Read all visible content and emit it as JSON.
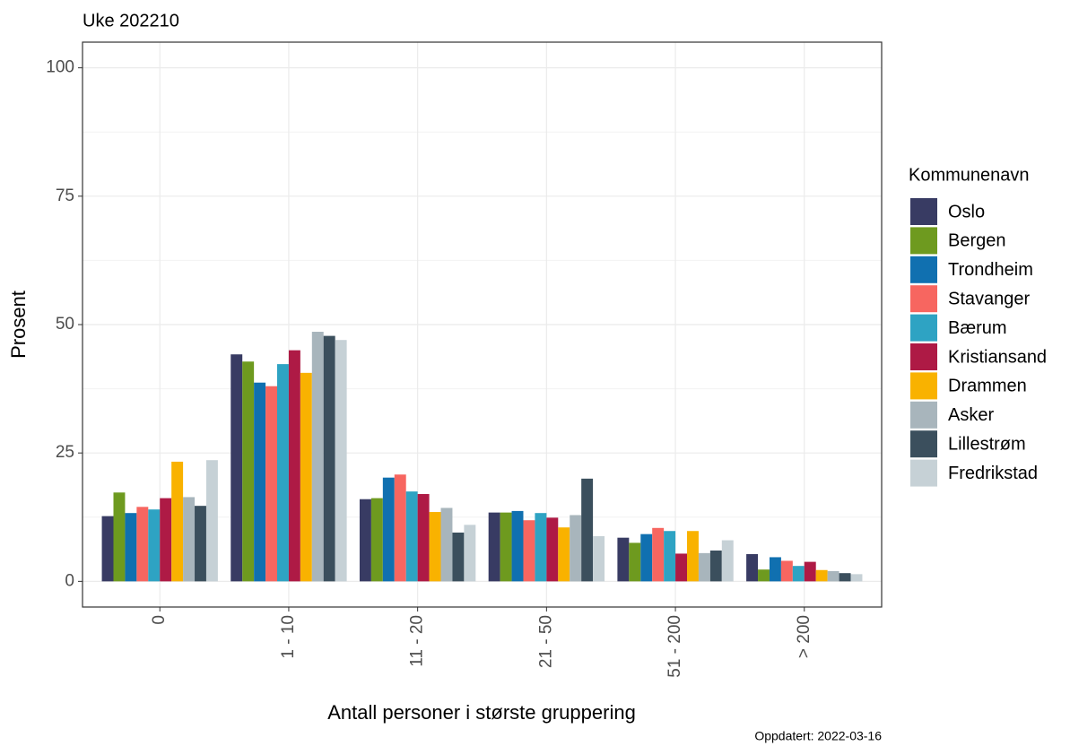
{
  "chart_data": {
    "type": "bar",
    "title": "Uke 202210",
    "y_label": "Prosent",
    "x_label": "Antall personer i største gruppering",
    "caption": "Oppdatert: 2022-03-16",
    "legend_title": "Kommunenavn",
    "categories": [
      "0",
      "1 - 10",
      "11 - 20",
      "21 - 50",
      "51 - 200",
      "> 200"
    ],
    "series": [
      {
        "name": "Oslo",
        "color": "#383b63",
        "values": [
          12.7,
          44.2,
          16,
          13.4,
          8.5,
          5.3
        ]
      },
      {
        "name": "Bergen",
        "color": "#6e9a1f",
        "values": [
          17.3,
          42.8,
          16.2,
          13.4,
          7.5,
          2.3
        ]
      },
      {
        "name": "Trondheim",
        "color": "#1070b0",
        "values": [
          13.3,
          38.7,
          20.2,
          13.7,
          9.2,
          4.7
        ]
      },
      {
        "name": "Stavanger",
        "color": "#f76660",
        "values": [
          14.5,
          38,
          20.8,
          11.9,
          10.4,
          4
        ]
      },
      {
        "name": "Bærum",
        "color": "#2ea3c3",
        "values": [
          14,
          42.3,
          17.5,
          13.3,
          9.8,
          3
        ]
      },
      {
        "name": "Kristiansand",
        "color": "#ae1a45",
        "values": [
          16.2,
          45,
          17,
          12.4,
          5.4,
          3.8
        ]
      },
      {
        "name": "Drammen",
        "color": "#f9b200",
        "values": [
          23.3,
          40.6,
          13.5,
          10.5,
          9.8,
          2.2
        ]
      },
      {
        "name": "Asker",
        "color": "#a8b5bc",
        "values": [
          16.4,
          48.6,
          14.3,
          12.9,
          5.5,
          2
        ]
      },
      {
        "name": "Lillestrøm",
        "color": "#3b4f5d",
        "values": [
          14.7,
          47.8,
          9.5,
          20,
          6,
          1.6
        ]
      },
      {
        "name": "Fredrikstad",
        "color": "#c6d1d6",
        "values": [
          23.6,
          47,
          11,
          8.8,
          8,
          1.4
        ]
      }
    ],
    "ylim": [
      -5,
      105
    ],
    "yticks": [
      0,
      25,
      50,
      75,
      100
    ],
    "grid": true,
    "legend": "right"
  }
}
